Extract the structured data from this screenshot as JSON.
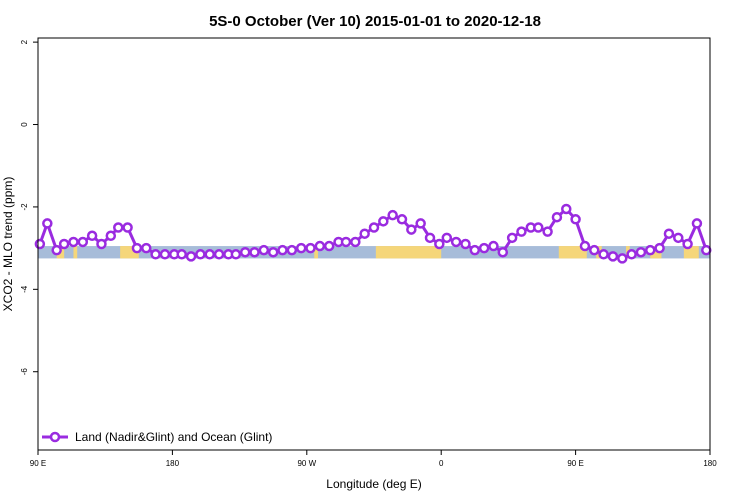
{
  "chart_data": {
    "type": "line",
    "title": "5S-0 October (Ver 10)   2015-01-01 to 2020-12-18",
    "xlabel": "Longitude (deg E)",
    "ylabel": "XCO2 - MLO trend (ppm)",
    "xlim": [
      90,
      450
    ],
    "ylim": [
      -7.9,
      2.1
    ],
    "xticks": [
      90,
      162,
      234,
      306,
      378,
      450
    ],
    "xtick_labels": [
      "90 E",
      "180",
      "90 W",
      "0",
      "90 E",
      "180"
    ],
    "yticks": [
      2,
      0,
      -2,
      -4,
      -6
    ],
    "ytick_labels": [
      "2",
      "0",
      "-2",
      "-4",
      "-6"
    ],
    "grid": false,
    "legend": {
      "position": "bottom-left",
      "entries": [
        "Land (Nadir&Glint) and Ocean (Glint)"
      ]
    },
    "series": [
      {
        "name": "Land (Nadir&Glint) and Ocean (Glint)",
        "color": "#9a2be0",
        "x": [
          91,
          95,
          100,
          104,
          109,
          114,
          119,
          124,
          129,
          133,
          138,
          143,
          148,
          153,
          158,
          163,
          167,
          172,
          177,
          182,
          187,
          192,
          196,
          201,
          206,
          211,
          216,
          221,
          226,
          231,
          236,
          241,
          246,
          251,
          255,
          260,
          265,
          270,
          275,
          280,
          285,
          290,
          295,
          300,
          305,
          309,
          314,
          319,
          324,
          329,
          334,
          339,
          344,
          349,
          354,
          358,
          363,
          368,
          373,
          378,
          383,
          388,
          393,
          398,
          403,
          408,
          413,
          418,
          423,
          428,
          433,
          438,
          443,
          448
        ],
        "y": [
          -2.9,
          -2.4,
          -3.05,
          -2.9,
          -2.85,
          -2.85,
          -2.7,
          -2.9,
          -2.7,
          -2.5,
          -2.5,
          -3.0,
          -3.0,
          -3.15,
          -3.15,
          -3.15,
          -3.15,
          -3.2,
          -3.15,
          -3.15,
          -3.15,
          -3.15,
          -3.15,
          -3.1,
          -3.1,
          -3.05,
          -3.1,
          -3.05,
          -3.05,
          -3.0,
          -3.0,
          -2.95,
          -2.95,
          -2.85,
          -2.85,
          -2.85,
          -2.65,
          -2.5,
          -2.35,
          -2.2,
          -2.3,
          -2.55,
          -2.4,
          -2.75,
          -2.9,
          -2.75,
          -2.85,
          -2.9,
          -3.05,
          -3.0,
          -2.95,
          -3.1,
          -2.75,
          -2.6,
          -2.5,
          -2.5,
          -2.6,
          -2.25,
          -2.05,
          -2.3,
          -2.95,
          -3.05,
          -3.15,
          -3.2,
          -3.25,
          -3.15,
          -3.1,
          -3.05,
          -3.0,
          -2.65,
          -2.75,
          -2.9,
          -2.4,
          -3.05
        ]
      }
    ]
  },
  "surface_bar": {
    "y_range": [
      -3.25,
      -2.95
    ],
    "ocean_color": "#a7bcd9",
    "land_color": "#f5d67a",
    "land_segments": [
      [
        100,
        104
      ],
      [
        109,
        111
      ],
      [
        134,
        144
      ],
      [
        238,
        240
      ],
      [
        271,
        306
      ],
      [
        369,
        384
      ],
      [
        389,
        392
      ],
      [
        405,
        407
      ],
      [
        418,
        424
      ],
      [
        436,
        444
      ]
    ]
  }
}
